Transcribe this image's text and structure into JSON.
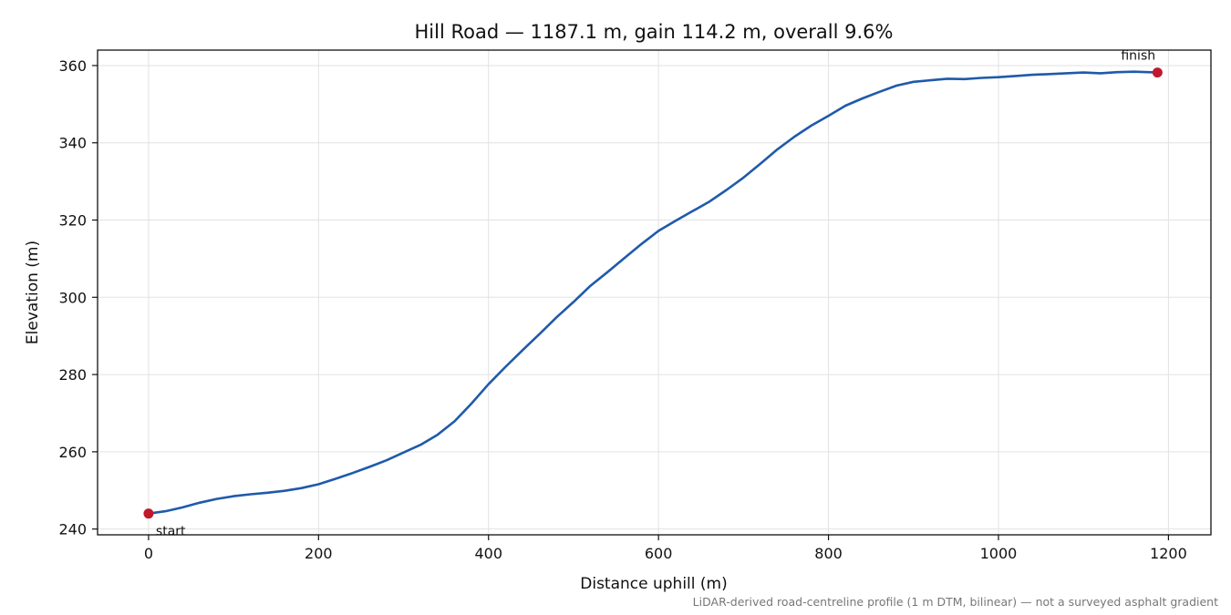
{
  "chart_data": {
    "type": "line",
    "title": "Hill Road — 1187.1 m, gain 114.2 m, overall 9.6%",
    "xlabel": "Distance uphill (m)",
    "ylabel": "Elevation (m)",
    "xlim": [
      -60,
      1250
    ],
    "ylim": [
      238.5,
      364
    ],
    "x_ticks": [
      0,
      200,
      400,
      600,
      800,
      1000,
      1200
    ],
    "y_ticks": [
      240,
      260,
      280,
      300,
      320,
      340,
      360
    ],
    "grid": true,
    "footnote": "LiDAR-derived road-centreline profile (1 m DTM, bilinear) — not a surveyed asphalt gradient",
    "line_color": "#1f5aab",
    "marker_color": "#c0192b",
    "series": [
      {
        "x": [
          0,
          20,
          40,
          60,
          80,
          100,
          120,
          140,
          160,
          180,
          200,
          220,
          240,
          260,
          280,
          300,
          320,
          340,
          360,
          380,
          400,
          420,
          440,
          460,
          480,
          500,
          520,
          540,
          560,
          580,
          600,
          620,
          640,
          660,
          680,
          700,
          720,
          740,
          760,
          780,
          800,
          820,
          840,
          860,
          880,
          900,
          920,
          940,
          960,
          980,
          1000,
          1020,
          1040,
          1060,
          1080,
          1100,
          1120,
          1140,
          1160,
          1187.1
        ],
        "y": [
          244.0,
          244.6,
          245.6,
          246.8,
          247.8,
          248.5,
          249.0,
          249.4,
          249.9,
          250.6,
          251.6,
          253.0,
          254.5,
          256.1,
          257.8,
          259.8,
          261.8,
          264.4,
          267.9,
          272.5,
          277.5,
          282.0,
          286.3,
          290.5,
          294.8,
          298.8,
          303.0,
          306.5,
          310.2,
          313.8,
          317.2,
          319.8,
          322.3,
          324.8,
          327.8,
          331.0,
          334.6,
          338.3,
          341.6,
          344.5,
          347.0,
          349.6,
          351.5,
          353.2,
          354.8,
          355.8,
          356.2,
          356.6,
          356.5,
          356.8,
          357.0,
          357.3,
          357.6,
          357.8,
          358.0,
          358.2,
          358.0,
          358.3,
          358.4,
          358.2
        ]
      }
    ],
    "markers": [
      {
        "label": "start",
        "x": 0,
        "y": 244.0
      },
      {
        "label": "finish",
        "x": 1187.1,
        "y": 358.2
      }
    ]
  }
}
